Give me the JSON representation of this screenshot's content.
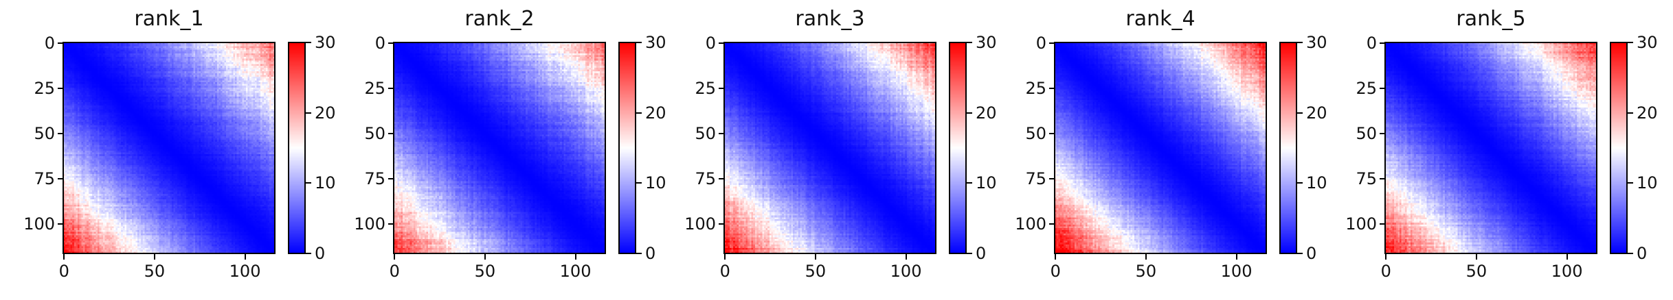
{
  "chart_data": [
    {
      "type": "heatmap",
      "title": "rank_1",
      "size": 117,
      "x_ticks": [
        0,
        50,
        100
      ],
      "y_ticks": [
        0,
        25,
        50,
        75,
        100
      ],
      "colorbar": {
        "min": 0,
        "max": 30,
        "ticks": [
          0,
          10,
          20,
          30
        ]
      },
      "pattern": {
        "lower_left_far": 30,
        "upper_right_far": 24,
        "diagonal": 0
      }
    },
    {
      "type": "heatmap",
      "title": "rank_2",
      "size": 117,
      "x_ticks": [
        0,
        50,
        100
      ],
      "y_ticks": [
        0,
        25,
        50,
        75,
        100
      ],
      "colorbar": {
        "min": 0,
        "max": 30,
        "ticks": [
          0,
          10,
          20,
          30
        ]
      },
      "pattern": {
        "lower_left_far": 28,
        "upper_right_far": 24,
        "diagonal": 0
      }
    },
    {
      "type": "heatmap",
      "title": "rank_3",
      "size": 117,
      "x_ticks": [
        0,
        50,
        100
      ],
      "y_ticks": [
        0,
        25,
        50,
        75,
        100
      ],
      "colorbar": {
        "min": 0,
        "max": 30,
        "ticks": [
          0,
          10,
          20,
          30
        ]
      },
      "pattern": {
        "lower_left_far": 30,
        "upper_right_far": 27,
        "diagonal": 0
      }
    },
    {
      "type": "heatmap",
      "title": "rank_4",
      "size": 117,
      "x_ticks": [
        0,
        50,
        100
      ],
      "y_ticks": [
        0,
        25,
        50,
        75,
        100
      ],
      "colorbar": {
        "min": 0,
        "max": 30,
        "ticks": [
          0,
          10,
          20,
          30
        ]
      },
      "pattern": {
        "lower_left_far": 32,
        "upper_right_far": 29,
        "diagonal": 0
      }
    },
    {
      "type": "heatmap",
      "title": "rank_5",
      "size": 117,
      "x_ticks": [
        0,
        50,
        100
      ],
      "y_ticks": [
        0,
        25,
        50,
        75,
        100
      ],
      "colorbar": {
        "min": 0,
        "max": 30,
        "ticks": [
          0,
          10,
          20,
          30
        ]
      },
      "pattern": {
        "lower_left_far": 30,
        "upper_right_far": 28,
        "diagonal": 0
      }
    }
  ],
  "colors": {
    "low": "#0000ff",
    "mid": "#ffffff",
    "high": "#ff0000",
    "colormap": "bwr"
  }
}
